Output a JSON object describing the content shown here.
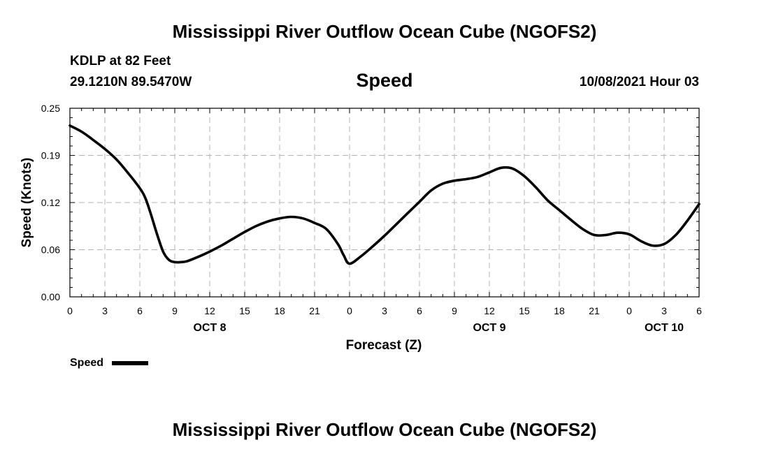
{
  "header": {
    "title": "Mississippi River Outflow Ocean Cube (NGOFS2)",
    "station": "KDLP at 82 Feet",
    "coords": "29.1210N  89.5470W",
    "variable": "Speed",
    "datetime": "10/08/2021 Hour 03"
  },
  "footer": {
    "title": "Mississippi River Outflow Ocean Cube (NGOFS2)"
  },
  "colors": {
    "line": "#000000",
    "grid": "#b4b4b4",
    "axis": "#000000"
  },
  "chart_data": {
    "type": "line",
    "title": "Speed",
    "xlabel": "Forecast (Z)",
    "ylabel": "Speed (Knots)",
    "xlim": [
      0,
      54
    ],
    "ylim": [
      0,
      0.25
    ],
    "yticks": [
      {
        "value": 0,
        "label": "0.00"
      },
      {
        "value": 0.0625,
        "label": "0.06"
      },
      {
        "value": 0.125,
        "label": "0.12"
      },
      {
        "value": 0.1875,
        "label": "0.19"
      },
      {
        "value": 0.25,
        "label": "0.25"
      }
    ],
    "xticks": [
      {
        "value": 0,
        "label": "0"
      },
      {
        "value": 3,
        "label": "3"
      },
      {
        "value": 6,
        "label": "6"
      },
      {
        "value": 9,
        "label": "9"
      },
      {
        "value": 12,
        "label": "12"
      },
      {
        "value": 15,
        "label": "15"
      },
      {
        "value": 18,
        "label": "18"
      },
      {
        "value": 21,
        "label": "21"
      },
      {
        "value": 24,
        "label": "0"
      },
      {
        "value": 27,
        "label": "3"
      },
      {
        "value": 30,
        "label": "6"
      },
      {
        "value": 33,
        "label": "9"
      },
      {
        "value": 36,
        "label": "12"
      },
      {
        "value": 39,
        "label": "15"
      },
      {
        "value": 42,
        "label": "18"
      },
      {
        "value": 45,
        "label": "21"
      },
      {
        "value": 48,
        "label": "0"
      },
      {
        "value": 51,
        "label": "3"
      },
      {
        "value": 54,
        "label": "6"
      }
    ],
    "day_labels": [
      {
        "value": 12,
        "label": "OCT 8"
      },
      {
        "value": 36,
        "label": "OCT 9"
      },
      {
        "value": 51,
        "label": "OCT 10"
      }
    ],
    "grid": true,
    "legend": {
      "position": "bottom-left",
      "entries": [
        "Speed"
      ]
    },
    "series": [
      {
        "name": "Speed",
        "x": [
          0,
          1,
          2,
          3,
          4,
          5,
          6,
          6.5,
          7,
          7.5,
          8,
          8.5,
          9,
          9.5,
          10,
          11,
          12,
          13,
          14,
          15,
          16,
          17,
          18,
          19,
          20,
          21,
          22,
          23,
          23.5,
          24,
          25,
          26,
          27,
          28,
          29,
          30,
          31,
          32,
          33,
          34,
          35,
          36,
          37,
          38,
          39,
          40,
          41,
          42,
          43,
          44,
          45,
          46,
          47,
          48,
          49,
          50,
          51,
          52,
          53,
          54
        ],
        "y": [
          0.227,
          0.219,
          0.208,
          0.196,
          0.182,
          0.164,
          0.144,
          0.13,
          0.107,
          0.082,
          0.06,
          0.049,
          0.046,
          0.046,
          0.047,
          0.053,
          0.06,
          0.068,
          0.077,
          0.086,
          0.094,
          0.1,
          0.104,
          0.106,
          0.104,
          0.098,
          0.09,
          0.07,
          0.055,
          0.044,
          0.054,
          0.067,
          0.081,
          0.096,
          0.111,
          0.126,
          0.141,
          0.15,
          0.154,
          0.156,
          0.159,
          0.165,
          0.171,
          0.17,
          0.16,
          0.145,
          0.128,
          0.115,
          0.102,
          0.09,
          0.082,
          0.082,
          0.085,
          0.083,
          0.074,
          0.068,
          0.07,
          0.082,
          0.101,
          0.123
        ]
      }
    ]
  }
}
